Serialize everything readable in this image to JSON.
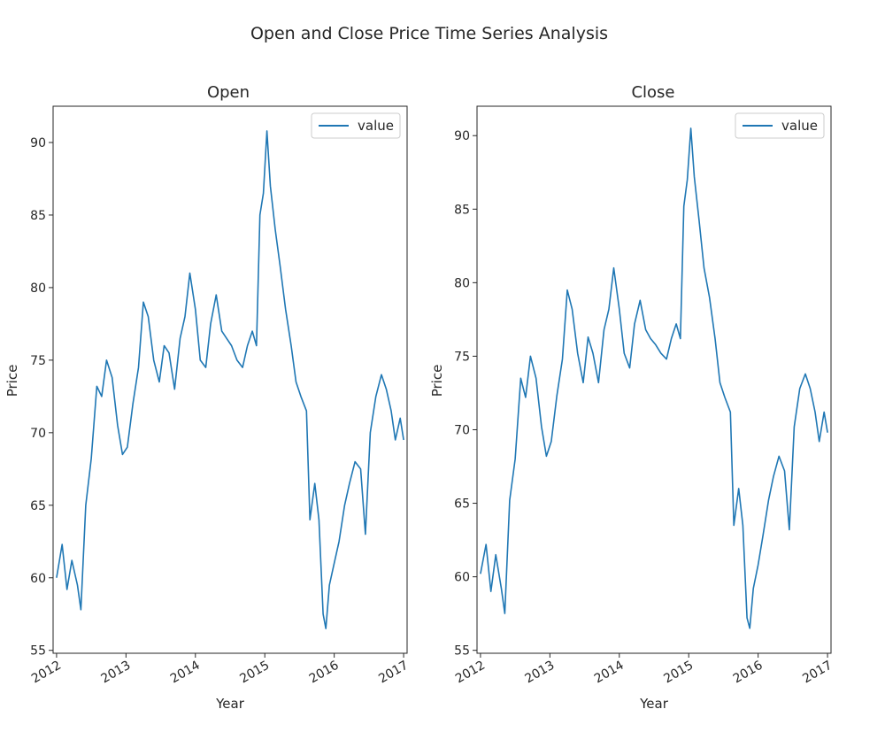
{
  "figure": {
    "title": "Open and Close Price Time Series Analysis",
    "line_color": "#1f77b4",
    "axis_color": "#262626"
  },
  "chart_data": [
    {
      "type": "line",
      "title": "Open",
      "xlabel": "Year",
      "ylabel": "Price",
      "xlim": [
        2011.95,
        2017.05
      ],
      "ylim": [
        54.8,
        92.5
      ],
      "x_ticks": [
        2012,
        2013,
        2014,
        2015,
        2016,
        2017
      ],
      "x_tick_labels": [
        "2012",
        "2013",
        "2014",
        "2015",
        "2016",
        "2017"
      ],
      "y_ticks": [
        55,
        60,
        65,
        70,
        75,
        80,
        85,
        90
      ],
      "y_tick_labels": [
        "55",
        "60",
        "65",
        "70",
        "75",
        "80",
        "85",
        "90"
      ],
      "grid": false,
      "legend": "upper-right",
      "series": [
        {
          "name": "value",
          "x": [
            2012.0,
            2012.08,
            2012.15,
            2012.22,
            2012.3,
            2012.35,
            2012.42,
            2012.5,
            2012.58,
            2012.65,
            2012.72,
            2012.8,
            2012.88,
            2012.95,
            2013.02,
            2013.1,
            2013.18,
            2013.25,
            2013.32,
            2013.4,
            2013.48,
            2013.55,
            2013.62,
            2013.7,
            2013.78,
            2013.85,
            2013.92,
            2014.0,
            2014.07,
            2014.15,
            2014.22,
            2014.3,
            2014.38,
            2014.45,
            2014.52,
            2014.6,
            2014.68,
            2014.75,
            2014.82,
            2014.88,
            2014.93,
            2014.98,
            2015.03,
            2015.08,
            2015.15,
            2015.22,
            2015.3,
            2015.38,
            2015.45,
            2015.52,
            2015.6,
            2015.65,
            2015.72,
            2015.78,
            2015.84,
            2015.88,
            2015.93,
            2016.0,
            2016.07,
            2016.15,
            2016.22,
            2016.3,
            2016.38,
            2016.45,
            2016.52,
            2016.6,
            2016.68,
            2016.75,
            2016.82,
            2016.88,
            2016.95,
            2017.0
          ],
          "y": [
            60.0,
            62.3,
            59.2,
            61.2,
            59.5,
            57.8,
            65.0,
            68.2,
            73.2,
            72.5,
            75.0,
            73.8,
            70.5,
            68.5,
            69.0,
            72.0,
            74.5,
            79.0,
            78.0,
            75.0,
            73.5,
            76.0,
            75.5,
            73.0,
            76.5,
            78.0,
            81.0,
            78.5,
            75.0,
            74.5,
            77.5,
            79.5,
            77.0,
            76.5,
            76.0,
            75.0,
            74.5,
            76.0,
            77.0,
            76.0,
            85.0,
            86.5,
            90.8,
            87.0,
            84.0,
            81.5,
            78.5,
            76.0,
            73.5,
            72.5,
            71.5,
            64.0,
            66.5,
            64.0,
            57.5,
            56.5,
            59.5,
            61.0,
            62.5,
            65.0,
            66.5,
            68.0,
            67.5,
            63.0,
            70.0,
            72.5,
            74.0,
            73.0,
            71.5,
            69.5,
            71.0,
            69.5
          ]
        }
      ]
    },
    {
      "type": "line",
      "title": "Close",
      "xlabel": "Year",
      "ylabel": "Price",
      "xlim": [
        2011.95,
        2017.05
      ],
      "ylim": [
        54.8,
        92.0
      ],
      "x_ticks": [
        2012,
        2013,
        2014,
        2015,
        2016,
        2017
      ],
      "x_tick_labels": [
        "2012",
        "2013",
        "2014",
        "2015",
        "2016",
        "2017"
      ],
      "y_ticks": [
        55,
        60,
        65,
        70,
        75,
        80,
        85,
        90
      ],
      "y_tick_labels": [
        "55",
        "60",
        "65",
        "70",
        "75",
        "80",
        "85",
        "90"
      ],
      "grid": false,
      "legend": "upper-right",
      "series": [
        {
          "name": "value",
          "x": [
            2012.0,
            2012.08,
            2012.15,
            2012.22,
            2012.3,
            2012.35,
            2012.42,
            2012.5,
            2012.58,
            2012.65,
            2012.72,
            2012.8,
            2012.88,
            2012.95,
            2013.02,
            2013.1,
            2013.18,
            2013.25,
            2013.32,
            2013.4,
            2013.48,
            2013.55,
            2013.62,
            2013.7,
            2013.78,
            2013.85,
            2013.92,
            2014.0,
            2014.07,
            2014.15,
            2014.22,
            2014.3,
            2014.38,
            2014.45,
            2014.52,
            2014.6,
            2014.68,
            2014.75,
            2014.82,
            2014.88,
            2014.93,
            2014.98,
            2015.03,
            2015.08,
            2015.15,
            2015.22,
            2015.3,
            2015.38,
            2015.45,
            2015.52,
            2015.6,
            2015.65,
            2015.72,
            2015.78,
            2015.84,
            2015.88,
            2015.93,
            2016.0,
            2016.07,
            2016.15,
            2016.22,
            2016.3,
            2016.38,
            2016.45,
            2016.52,
            2016.6,
            2016.68,
            2016.75,
            2016.82,
            2016.88,
            2016.95,
            2017.0
          ],
          "y": [
            60.2,
            62.2,
            59.0,
            61.5,
            59.2,
            57.5,
            65.2,
            68.0,
            73.5,
            72.2,
            75.0,
            73.5,
            70.2,
            68.2,
            69.2,
            72.3,
            74.8,
            79.5,
            78.2,
            75.2,
            73.2,
            76.3,
            75.2,
            73.2,
            76.8,
            78.2,
            81.0,
            78.2,
            75.2,
            74.2,
            77.2,
            78.8,
            76.8,
            76.2,
            75.8,
            75.2,
            74.8,
            76.2,
            77.2,
            76.2,
            85.2,
            87.0,
            90.5,
            87.2,
            84.2,
            81.0,
            79.0,
            76.2,
            73.2,
            72.2,
            71.2,
            63.5,
            66.0,
            63.5,
            57.2,
            56.5,
            59.2,
            60.8,
            62.8,
            65.2,
            66.8,
            68.2,
            67.2,
            63.2,
            70.2,
            72.8,
            73.8,
            72.8,
            71.2,
            69.2,
            71.2,
            69.8
          ]
        }
      ]
    }
  ]
}
